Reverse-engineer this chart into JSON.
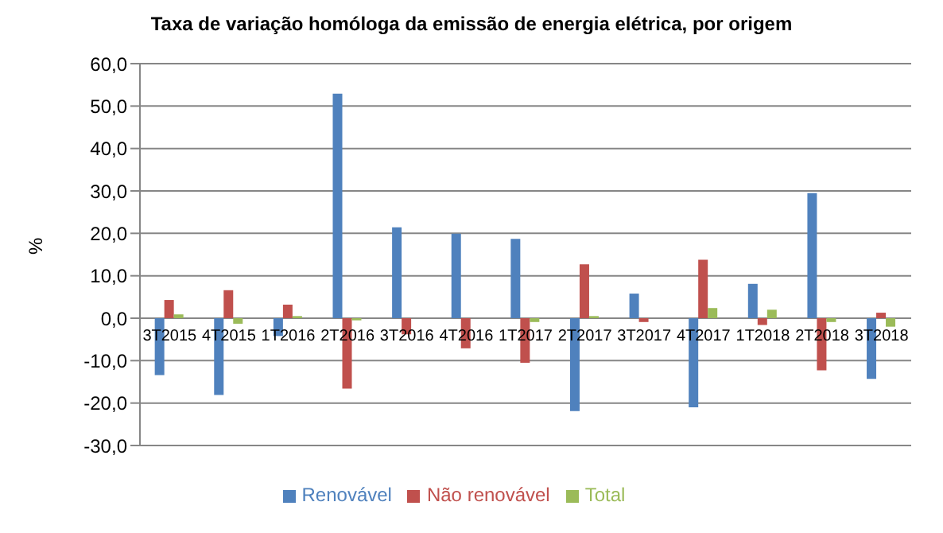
{
  "chart_data": {
    "type": "bar",
    "title": "Taxa de variação homóloga da emissão de energia elétrica, por origem",
    "ylabel": "%",
    "categories": [
      "3T2015",
      "4T2015",
      "1T2016",
      "2T2016",
      "3T2016",
      "4T2016",
      "1T2017",
      "2T2017",
      "3T2017",
      "4T2017",
      "1T2018",
      "2T2018",
      "3T2018"
    ],
    "series": [
      {
        "name": "Renovável",
        "color": "#4f81bd",
        "values": [
          -13.4,
          -18.1,
          -4.2,
          52.9,
          21.4,
          19.9,
          18.7,
          -21.9,
          5.8,
          -21.0,
          8.1,
          29.5,
          -14.3
        ]
      },
      {
        "name": "Não renovável",
        "color": "#c0504d",
        "values": [
          4.3,
          6.6,
          3.2,
          -16.6,
          -3.8,
          -7.1,
          -10.5,
          12.7,
          -0.9,
          13.8,
          -1.6,
          -12.3,
          1.3
        ]
      },
      {
        "name": "Total",
        "color": "#9bbb59",
        "values": [
          0.9,
          -1.3,
          0.5,
          -0.5,
          0.0,
          0.0,
          -0.9,
          0.5,
          0.0,
          2.4,
          2.0,
          -0.9,
          -2.0
        ]
      }
    ],
    "ylim": [
      -30,
      60
    ],
    "yticks": [
      {
        "value": -30,
        "label": "-30,0"
      },
      {
        "value": -20,
        "label": "-20,0"
      },
      {
        "value": -10,
        "label": "-10,0"
      },
      {
        "value": 0,
        "label": "0,0"
      },
      {
        "value": 10,
        "label": "10,0"
      },
      {
        "value": 20,
        "label": "20,0"
      },
      {
        "value": 30,
        "label": "30,0"
      },
      {
        "value": 40,
        "label": "40,0"
      },
      {
        "value": 50,
        "label": "50,0"
      },
      {
        "value": 60,
        "label": "60,0"
      }
    ],
    "grid": "y",
    "legend": "bottom"
  }
}
